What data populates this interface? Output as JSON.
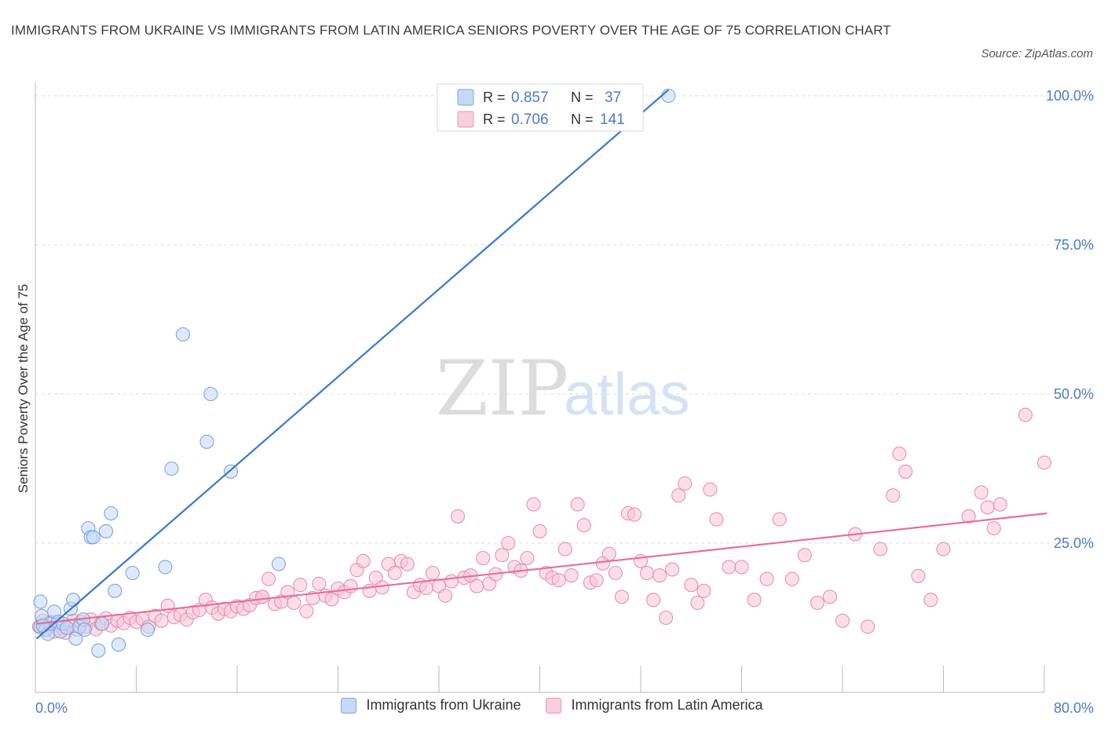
{
  "title": "IMMIGRANTS FROM UKRAINE VS IMMIGRANTS FROM LATIN AMERICA SENIORS POVERTY OVER THE AGE OF 75 CORRELATION CHART",
  "source": "Source: ZipAtlas.com",
  "watermark": {
    "zip": "ZIP",
    "atlas": "atlas"
  },
  "colors": {
    "blue": "#3a78d0",
    "pink": "#e76e99",
    "label_blue": "#4a7cc9"
  },
  "chart_data": {
    "type": "scatter",
    "ylabel": "Seniors Poverty Over the Age of 75",
    "xlim": [
      0,
      80
    ],
    "ylim": [
      0,
      100
    ],
    "x_tick_labels": {
      "left": "0.0%",
      "right": "80.0%"
    },
    "y_tick_labels": [
      "100.0%",
      "75.0%",
      "50.0%",
      "25.0%"
    ],
    "y_tick_values": [
      100,
      75,
      50,
      25
    ],
    "legend_stats": [
      {
        "r_label": "R =",
        "r_value": "0.857",
        "n_label": "N =",
        "n_value": "37"
      },
      {
        "r_label": "R =",
        "r_value": "0.706",
        "n_label": "N =",
        "n_value": "141"
      }
    ],
    "series": [
      {
        "name": "Immigrants from Ukraine",
        "color": "#3a78d0",
        "trend": [
          [
            0.1,
            9.0
          ],
          [
            50.2,
            101.0
          ]
        ],
        "points": [
          [
            0.4,
            15.2
          ],
          [
            0.5,
            12.8
          ],
          [
            0.4,
            11.0
          ],
          [
            0.8,
            10.5
          ],
          [
            1.0,
            9.8
          ],
          [
            1.2,
            11.5
          ],
          [
            1.5,
            13.5
          ],
          [
            1.8,
            11.8
          ],
          [
            2.0,
            10.2
          ],
          [
            2.2,
            11.5
          ],
          [
            2.5,
            10.8
          ],
          [
            2.8,
            14.0
          ],
          [
            3.0,
            15.5
          ],
          [
            3.2,
            9.0
          ],
          [
            3.5,
            11.0
          ],
          [
            3.8,
            12.2
          ],
          [
            3.9,
            10.5
          ],
          [
            4.2,
            27.5
          ],
          [
            4.4,
            26.0
          ],
          [
            4.6,
            26.0
          ],
          [
            5.0,
            7.0
          ],
          [
            5.3,
            11.5
          ],
          [
            5.6,
            27.0
          ],
          [
            6.0,
            30.0
          ],
          [
            6.3,
            17.0
          ],
          [
            6.6,
            8.0
          ],
          [
            7.7,
            20.0
          ],
          [
            8.9,
            10.5
          ],
          [
            10.3,
            21.0
          ],
          [
            10.8,
            37.5
          ],
          [
            11.7,
            60.0
          ],
          [
            13.6,
            42.0
          ],
          [
            13.9,
            50.0
          ],
          [
            15.5,
            37.0
          ],
          [
            19.3,
            21.5
          ],
          [
            0.6,
            11.2
          ],
          [
            50.2,
            100.0
          ]
        ]
      },
      {
        "name": "Immigrants from Latin America",
        "color": "#e76e99",
        "trend": [
          [
            0.1,
            11.5
          ],
          [
            80.2,
            30.0
          ]
        ],
        "points": [
          [
            0.3,
            11.0
          ],
          [
            0.6,
            12.0
          ],
          [
            0.9,
            10.5
          ],
          [
            1.2,
            11.8
          ],
          [
            1.5,
            10.2
          ],
          [
            1.8,
            11.5
          ],
          [
            2.1,
            10.8
          ],
          [
            2.4,
            10.0
          ],
          [
            2.7,
            11.2
          ],
          [
            3.0,
            12.0
          ],
          [
            3.3,
            10.5
          ],
          [
            3.6,
            11.8
          ],
          [
            4.0,
            11.0
          ],
          [
            4.4,
            12.2
          ],
          [
            4.8,
            10.6
          ],
          [
            5.2,
            11.5
          ],
          [
            5.6,
            12.4
          ],
          [
            6.0,
            11.2
          ],
          [
            6.5,
            12.0
          ],
          [
            7.0,
            11.6
          ],
          [
            7.5,
            12.5
          ],
          [
            8.0,
            11.8
          ],
          [
            8.5,
            12.3
          ],
          [
            9.0,
            11.0
          ],
          [
            9.5,
            12.8
          ],
          [
            10.0,
            12.0
          ],
          [
            10.5,
            14.5
          ],
          [
            11.0,
            12.6
          ],
          [
            11.5,
            13.0
          ],
          [
            12.0,
            12.2
          ],
          [
            12.5,
            13.4
          ],
          [
            13.0,
            13.8
          ],
          [
            13.5,
            15.5
          ],
          [
            14.0,
            14.2
          ],
          [
            14.5,
            13.2
          ],
          [
            15.0,
            14.0
          ],
          [
            15.5,
            13.6
          ],
          [
            16.0,
            14.4
          ],
          [
            16.5,
            14.0
          ],
          [
            17.0,
            14.6
          ],
          [
            17.5,
            15.8
          ],
          [
            18.0,
            16.0
          ],
          [
            18.5,
            19.0
          ],
          [
            19.0,
            14.8
          ],
          [
            19.5,
            15.2
          ],
          [
            20.0,
            16.8
          ],
          [
            20.5,
            15.0
          ],
          [
            21.0,
            18.0
          ],
          [
            21.5,
            13.6
          ],
          [
            22.0,
            15.8
          ],
          [
            22.5,
            18.2
          ],
          [
            23.0,
            16.2
          ],
          [
            23.5,
            15.6
          ],
          [
            24.0,
            17.4
          ],
          [
            24.5,
            16.8
          ],
          [
            25.0,
            17.8
          ],
          [
            25.5,
            20.5
          ],
          [
            26.0,
            22.0
          ],
          [
            26.5,
            17.0
          ],
          [
            27.0,
            19.2
          ],
          [
            27.5,
            17.6
          ],
          [
            28.0,
            21.5
          ],
          [
            28.5,
            20.0
          ],
          [
            29.0,
            22.0
          ],
          [
            29.5,
            21.5
          ],
          [
            30.0,
            16.8
          ],
          [
            30.5,
            18.0
          ],
          [
            31.0,
            17.5
          ],
          [
            31.5,
            20.0
          ],
          [
            32.0,
            17.8
          ],
          [
            32.5,
            16.2
          ],
          [
            33.0,
            18.6
          ],
          [
            33.5,
            29.5
          ],
          [
            34.0,
            19.2
          ],
          [
            34.5,
            19.6
          ],
          [
            35.0,
            17.8
          ],
          [
            35.5,
            22.5
          ],
          [
            36.0,
            18.2
          ],
          [
            36.5,
            19.8
          ],
          [
            37.0,
            23.0
          ],
          [
            37.5,
            25.0
          ],
          [
            38.0,
            21.0
          ],
          [
            38.5,
            20.4
          ],
          [
            39.0,
            22.5
          ],
          [
            39.5,
            31.5
          ],
          [
            40.0,
            27.0
          ],
          [
            40.5,
            20.0
          ],
          [
            41.0,
            19.2
          ],
          [
            41.5,
            18.8
          ],
          [
            42.0,
            24.0
          ],
          [
            42.5,
            19.6
          ],
          [
            43.0,
            31.5
          ],
          [
            43.5,
            28.0
          ],
          [
            44.0,
            18.4
          ],
          [
            44.5,
            18.8
          ],
          [
            45.0,
            21.6
          ],
          [
            45.5,
            23.2
          ],
          [
            46.0,
            20.0
          ],
          [
            46.5,
            16.0
          ],
          [
            47.0,
            30.0
          ],
          [
            47.5,
            29.8
          ],
          [
            48.0,
            22.0
          ],
          [
            48.5,
            20.0
          ],
          [
            49.0,
            15.5
          ],
          [
            49.5,
            19.6
          ],
          [
            50.0,
            12.5
          ],
          [
            50.5,
            20.6
          ],
          [
            51.0,
            33.0
          ],
          [
            51.5,
            35.0
          ],
          [
            52.0,
            18.0
          ],
          [
            52.5,
            15.0
          ],
          [
            53.0,
            17.0
          ],
          [
            53.5,
            34.0
          ],
          [
            54.0,
            29.0
          ],
          [
            55.0,
            21.0
          ],
          [
            56.0,
            21.0
          ],
          [
            57.0,
            15.5
          ],
          [
            58.0,
            19.0
          ],
          [
            59.0,
            29.0
          ],
          [
            60.0,
            19.0
          ],
          [
            61.0,
            23.0
          ],
          [
            62.0,
            15.0
          ],
          [
            63.0,
            16.0
          ],
          [
            64.0,
            12.0
          ],
          [
            65.0,
            26.5
          ],
          [
            66.0,
            11.0
          ],
          [
            67.0,
            24.0
          ],
          [
            68.0,
            33.0
          ],
          [
            68.5,
            40.0
          ],
          [
            69.0,
            37.0
          ],
          [
            70.0,
            19.5
          ],
          [
            71.0,
            15.5
          ],
          [
            72.0,
            24.0
          ],
          [
            74.0,
            29.5
          ],
          [
            75.0,
            33.5
          ],
          [
            75.5,
            31.0
          ],
          [
            76.0,
            27.5
          ],
          [
            76.5,
            31.5
          ],
          [
            78.5,
            46.5
          ],
          [
            80.0,
            38.5
          ],
          [
            18.0,
            16.0
          ]
        ]
      }
    ],
    "legend_bottom": [
      "Immigrants from Ukraine",
      "Immigrants from Latin America"
    ]
  }
}
